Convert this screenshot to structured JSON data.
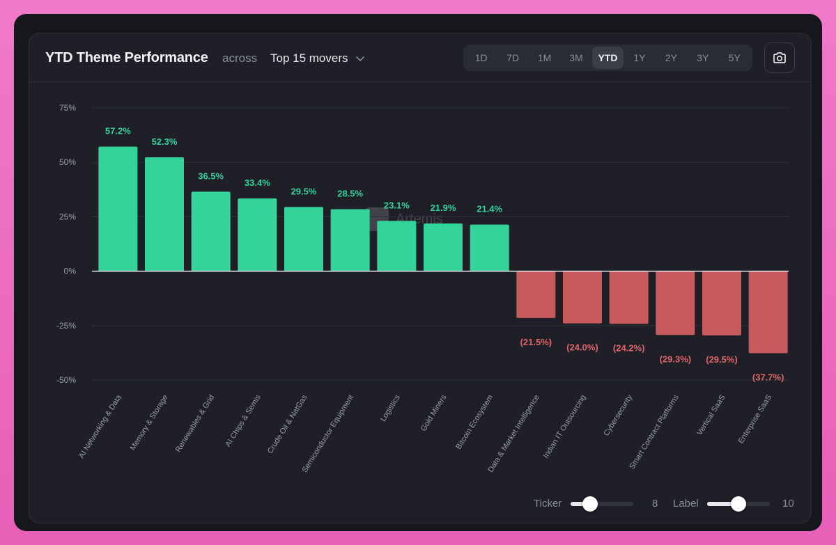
{
  "header": {
    "title": "YTD Theme Performance",
    "across": "across",
    "dropdown_value": "Top 15 movers",
    "periods": [
      "1D",
      "7D",
      "1M",
      "3M",
      "YTD",
      "1Y",
      "2Y",
      "3Y",
      "5Y"
    ],
    "active_period": "YTD"
  },
  "watermark": "Artemis",
  "colors": {
    "positive": "#34d399",
    "negative": "#c65a5c",
    "positive_label": "#34d399",
    "negative_label": "#e0656a",
    "grid": "#2f313b",
    "axis_text": "#9a9da8",
    "category_text": "#9a9da8",
    "zero_line": "#e8e9ee"
  },
  "chart_data": {
    "type": "bar",
    "title": "YTD Theme Performance",
    "xlabel": "",
    "ylabel": "",
    "ylim": [
      -50,
      75
    ],
    "yticks": [
      75,
      50,
      25,
      0,
      -25,
      -50
    ],
    "ytick_labels": [
      "75%",
      "50%",
      "25%",
      "0%",
      "-25%",
      "-50%"
    ],
    "grid": true,
    "categories": [
      "AI Networking & Data",
      "Memory & Storage",
      "Renewables & Grid",
      "AI Chips & Semis",
      "Crude Oil & NatGas",
      "Semiconductor Equipment",
      "Logistics",
      "Gold Miners",
      "Bitcoin Ecosystem",
      "Data & Market Intelligence",
      "Indian IT Outsourcing",
      "Cybersecurity",
      "Smart Contract Platforms",
      "Vertical SaaS",
      "Enterprise SaaS"
    ],
    "values": [
      57.2,
      52.3,
      36.5,
      33.4,
      29.5,
      28.5,
      23.1,
      21.9,
      21.4,
      -21.5,
      -24.0,
      -24.2,
      -29.3,
      -29.5,
      -37.7
    ],
    "data_labels": [
      "57.2%",
      "52.3%",
      "36.5%",
      "33.4%",
      "29.5%",
      "28.5%",
      "23.1%",
      "21.9%",
      "21.4%",
      "(21.5%)",
      "(24.0%)",
      "(24.2%)",
      "(29.3%)",
      "(29.5%)",
      "(37.7%)"
    ]
  },
  "controls": {
    "ticker_label": "Ticker",
    "ticker_value": "8",
    "ticker_fraction": 0.31,
    "label_label": "Label",
    "label_value": "10",
    "label_fraction": 0.5
  }
}
